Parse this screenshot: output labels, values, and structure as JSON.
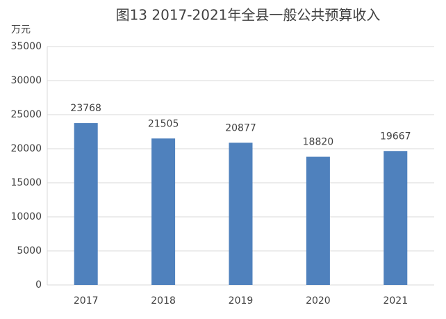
{
  "chart_data": {
    "type": "bar",
    "title": "图13 2017-2021年全县一般公共预算收入",
    "y_label": "万元",
    "categories": [
      "2017",
      "2018",
      "2019",
      "2020",
      "2021"
    ],
    "values": [
      23768,
      21505,
      20877,
      18820,
      19667
    ],
    "color": "#4f81bd",
    "ylim": [
      0,
      35000
    ],
    "yticks": [
      0,
      5000,
      10000,
      15000,
      20000,
      25000,
      30000,
      35000
    ],
    "grid": true
  }
}
